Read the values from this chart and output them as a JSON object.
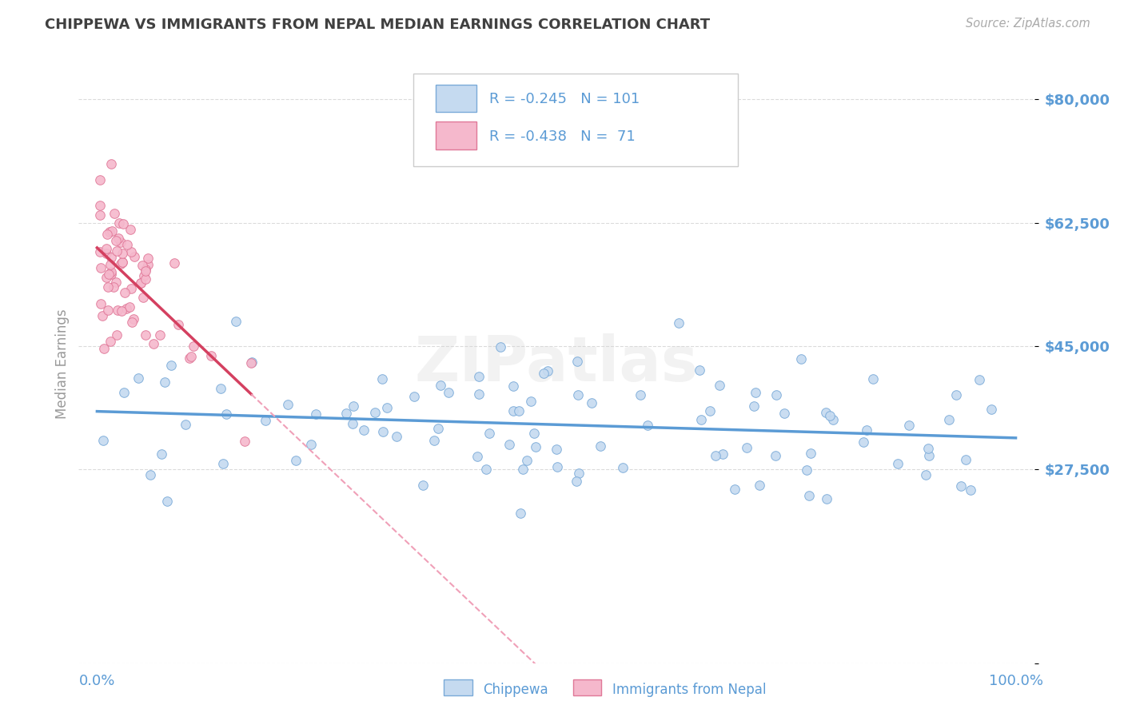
{
  "title": "CHIPPEWA VS IMMIGRANTS FROM NEPAL MEDIAN EARNINGS CORRELATION CHART",
  "source": "Source: ZipAtlas.com",
  "ylabel": "Median Earnings",
  "r_chippewa": -0.245,
  "n_chippewa": 101,
  "r_nepal": -0.438,
  "n_nepal": 71,
  "chippewa_fill": "#c5daf0",
  "chippewa_edge": "#7aaad8",
  "nepal_fill": "#f5b8cc",
  "nepal_edge": "#e07898",
  "chippewa_line_color": "#5b9bd5",
  "nepal_line_solid_color": "#d44060",
  "nepal_line_dash_color": "#f0a0b8",
  "bg_color": "#ffffff",
  "grid_color": "#cccccc",
  "title_color": "#404040",
  "axis_tick_color": "#5b9bd5",
  "source_color": "#aaaaaa",
  "watermark": "ZIPatlas",
  "ytick_vals": [
    0,
    27500,
    45000,
    62500,
    80000
  ],
  "ytick_labels": [
    "",
    "$27,500",
    "$45,000",
    "$62,500",
    "$80,000"
  ],
  "ylim": [
    0,
    85000
  ],
  "xlim": [
    0.0,
    1.0
  ]
}
